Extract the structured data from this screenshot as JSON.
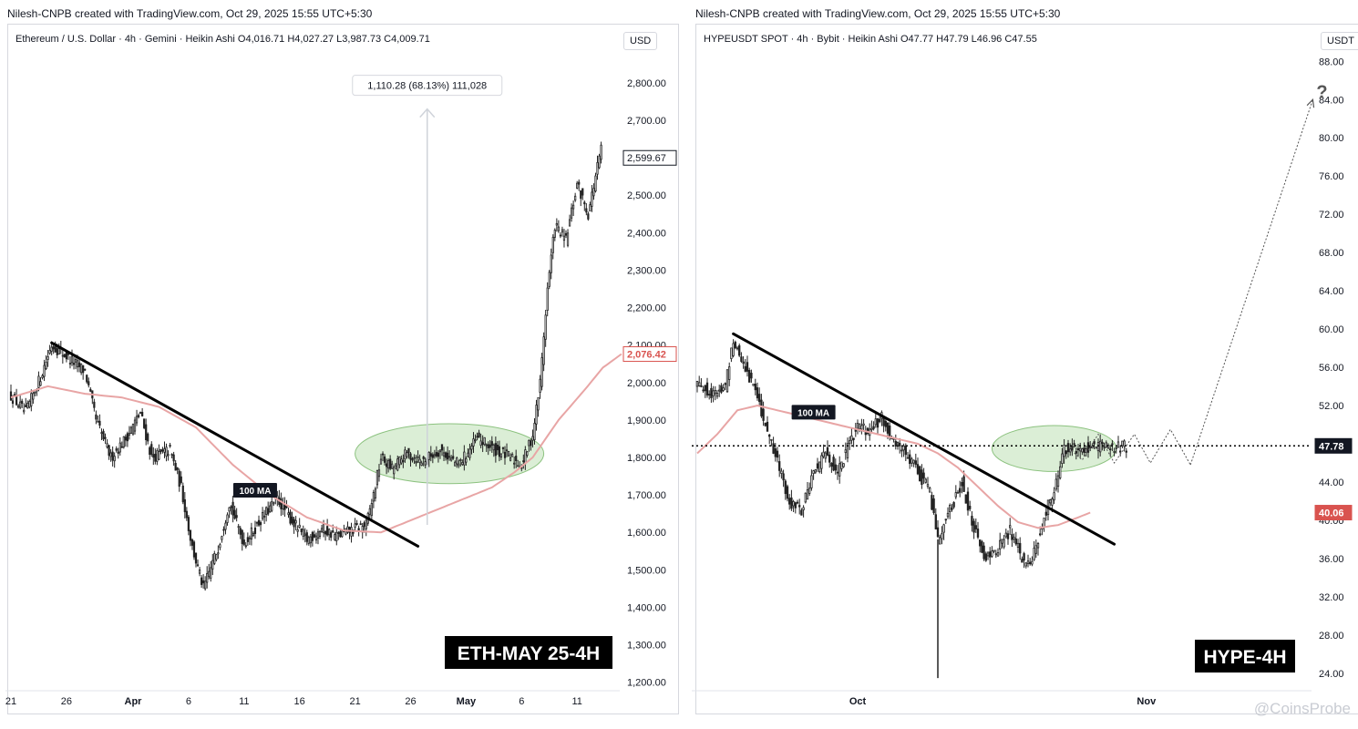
{
  "chart_data": [
    {
      "type": "candlestick",
      "attribution": "Nilesh-CNPB created with TradingView.com, Oct 29, 2025 15:55 UTC+5:30",
      "legend": "Ethereum / U.S. Dollar · 4h · Gemini · Heikin Ashi  O4,016.71  H4,027.27  L3,987.73  C4,009.71",
      "unit": "USD",
      "y_ticks": [
        "2,800.00",
        "2,700.00",
        "2,600.00",
        "2,500.00",
        "2,400.00",
        "2,300.00",
        "2,200.00",
        "2,100.00",
        "2,000.00",
        "1,900.00",
        "1,800.00",
        "1,700.00",
        "1,600.00",
        "1,500.00",
        "1,400.00",
        "1,300.00",
        "1,200.00"
      ],
      "ylim": [
        1170,
        2880
      ],
      "x_ticks": [
        {
          "label": "21",
          "i": 0,
          "bold": false
        },
        {
          "label": "26",
          "i": 30,
          "bold": false
        },
        {
          "label": "Apr",
          "i": 66,
          "bold": true
        },
        {
          "label": "6",
          "i": 96,
          "bold": false
        },
        {
          "label": "11",
          "i": 126,
          "bold": false
        },
        {
          "label": "16",
          "i": 156,
          "bold": false
        },
        {
          "label": "21",
          "i": 186,
          "bold": false
        },
        {
          "label": "26",
          "i": 216,
          "bold": false
        },
        {
          "label": "May",
          "i": 246,
          "bold": true
        },
        {
          "label": "6",
          "i": 276,
          "bold": false
        },
        {
          "label": "11",
          "i": 306,
          "bold": false
        }
      ],
      "n_candles": 320,
      "price_path": [
        [
          0,
          1965
        ],
        [
          8,
          1920
        ],
        [
          16,
          2015
        ],
        [
          22,
          2100
        ],
        [
          30,
          2070
        ],
        [
          40,
          2030
        ],
        [
          46,
          1900
        ],
        [
          54,
          1800
        ],
        [
          62,
          1850
        ],
        [
          70,
          1920
        ],
        [
          76,
          1800
        ],
        [
          86,
          1820
        ],
        [
          92,
          1720
        ],
        [
          98,
          1560
        ],
        [
          104,
          1450
        ],
        [
          112,
          1560
        ],
        [
          118,
          1680
        ],
        [
          126,
          1570
        ],
        [
          136,
          1640
        ],
        [
          144,
          1690
        ],
        [
          152,
          1630
        ],
        [
          160,
          1580
        ],
        [
          168,
          1610
        ],
        [
          176,
          1590
        ],
        [
          186,
          1610
        ],
        [
          192,
          1620
        ],
        [
          196,
          1700
        ],
        [
          200,
          1800
        ],
        [
          206,
          1770
        ],
        [
          214,
          1810
        ],
        [
          222,
          1790
        ],
        [
          232,
          1820
        ],
        [
          242,
          1780
        ],
        [
          252,
          1850
        ],
        [
          262,
          1820
        ],
        [
          270,
          1800
        ],
        [
          276,
          1780
        ],
        [
          282,
          1860
        ],
        [
          286,
          2000
        ],
        [
          290,
          2250
        ],
        [
          294,
          2420
        ],
        [
          300,
          2380
        ],
        [
          306,
          2530
        ],
        [
          312,
          2450
        ],
        [
          318,
          2600
        ],
        [
          322,
          2680
        ],
        [
          326,
          2580
        ],
        [
          330,
          2620
        ]
      ],
      "current_price": 2599.67,
      "current_price_label": "2,599.67",
      "ma_label": "100 MA",
      "ma_price_label": "2,076.42",
      "ma_color": "#e8a5a5",
      "ma_path": [
        [
          0,
          1960
        ],
        [
          20,
          1990
        ],
        [
          40,
          1970
        ],
        [
          60,
          1960
        ],
        [
          80,
          1935
        ],
        [
          100,
          1880
        ],
        [
          120,
          1780
        ],
        [
          140,
          1700
        ],
        [
          160,
          1640
        ],
        [
          180,
          1605
        ],
        [
          200,
          1600
        ],
        [
          220,
          1640
        ],
        [
          240,
          1680
        ],
        [
          260,
          1720
        ],
        [
          272,
          1760
        ],
        [
          282,
          1800
        ],
        [
          296,
          1900
        ],
        [
          310,
          1980
        ],
        [
          320,
          2040
        ],
        [
          330,
          2076
        ]
      ],
      "trendline": [
        [
          22,
          2106
        ],
        [
          220,
          1563
        ]
      ],
      "measure_label": "1,110.28 (68.13%) 111,028",
      "measure": {
        "i": 225,
        "from": 1620,
        "to": 2730
      },
      "zone": {
        "i_center": 237,
        "price_center": 1810,
        "i_halfwidth": 51,
        "price_halfwidth": 80,
        "color": "#cfe8c8"
      },
      "badge": "ETH-MAY 25-4H"
    },
    {
      "type": "candlestick",
      "attribution": "Nilesh-CNPB created with TradingView.com, Oct 29, 2025 15:55 UTC+5:30",
      "legend": "HYPEUSDT SPOT · 4h · Bybit · Heikin Ashi  O47.77  H47.79  L46.96  C47.55",
      "unit": "USDT",
      "y_ticks": [
        "88.00",
        "84.00",
        "80.00",
        "76.00",
        "72.00",
        "68.00",
        "64.00",
        "60.00",
        "56.00",
        "52.00",
        "48.00",
        "44.00",
        "40.00",
        "36.00",
        "32.00",
        "28.00",
        "24.00"
      ],
      "ylim": [
        21.6,
        90.6
      ],
      "x_ticks": [
        {
          "label": "Oct",
          "i": 80,
          "bold": true
        },
        {
          "label": "Nov",
          "i": 224,
          "bold": true
        }
      ],
      "n_candles": 215,
      "price_path": [
        [
          0,
          54.5
        ],
        [
          8,
          53
        ],
        [
          14,
          54
        ],
        [
          18,
          59
        ],
        [
          24,
          56
        ],
        [
          30,
          53
        ],
        [
          34,
          50
        ],
        [
          40,
          46
        ],
        [
          46,
          42
        ],
        [
          52,
          41
        ],
        [
          58,
          45
        ],
        [
          64,
          47
        ],
        [
          70,
          45
        ],
        [
          76,
          48
        ],
        [
          80,
          50
        ],
        [
          86,
          49
        ],
        [
          92,
          51
        ],
        [
          98,
          48
        ],
        [
          104,
          47
        ],
        [
          110,
          45
        ],
        [
          116,
          43
        ],
        [
          120,
          38
        ],
        [
          126,
          41
        ],
        [
          132,
          44
        ],
        [
          138,
          39
        ],
        [
          144,
          36
        ],
        [
          150,
          37
        ],
        [
          156,
          39
        ],
        [
          162,
          36
        ],
        [
          166,
          35
        ],
        [
          170,
          38
        ],
        [
          174,
          41
        ],
        [
          178,
          43
        ],
        [
          182,
          47
        ],
        [
          186,
          48
        ],
        [
          190,
          47.5
        ],
        [
          195,
          47.7
        ]
      ],
      "current_price": 47.78,
      "current_price_label": "47.78",
      "ma_label": "100 MA",
      "ma_price_label": "40.06",
      "ma_color": "#e8a5a5",
      "ma_path": [
        [
          0,
          47
        ],
        [
          10,
          49
        ],
        [
          20,
          51.5
        ],
        [
          30,
          52
        ],
        [
          40,
          51.5
        ],
        [
          50,
          51
        ],
        [
          60,
          50.5
        ],
        [
          70,
          50
        ],
        [
          80,
          49.5
        ],
        [
          90,
          49
        ],
        [
          100,
          48.5
        ],
        [
          110,
          48
        ],
        [
          120,
          47
        ],
        [
          130,
          45.5
        ],
        [
          140,
          43.5
        ],
        [
          150,
          41.5
        ],
        [
          160,
          39.8
        ],
        [
          170,
          39.2
        ],
        [
          180,
          39.5
        ],
        [
          190,
          40.3
        ],
        [
          196,
          40.8
        ]
      ],
      "trendline": [
        [
          18,
          59.5
        ],
        [
          208,
          37.5
        ]
      ],
      "spike": {
        "i": 120,
        "low": 23.5
      },
      "zone": {
        "i_center": 178,
        "price_center": 47.5,
        "i_halfwidth": 31,
        "price_halfwidth": 2.4,
        "color": "#cfe8c8"
      },
      "projection_zigzag": [
        [
          184,
          47.8
        ],
        [
          192,
          46.3
        ],
        [
          200,
          49
        ],
        [
          208,
          46
        ],
        [
          218,
          49
        ],
        [
          226,
          46
        ],
        [
          236,
          49.5
        ],
        [
          246,
          45.8
        ]
      ],
      "projection_arrow": [
        [
          246,
          45.8
        ],
        [
          307,
          84
        ]
      ],
      "projection_label": "?",
      "badge": "HYPE-4H",
      "watermark": "@CoinsProbe"
    }
  ]
}
